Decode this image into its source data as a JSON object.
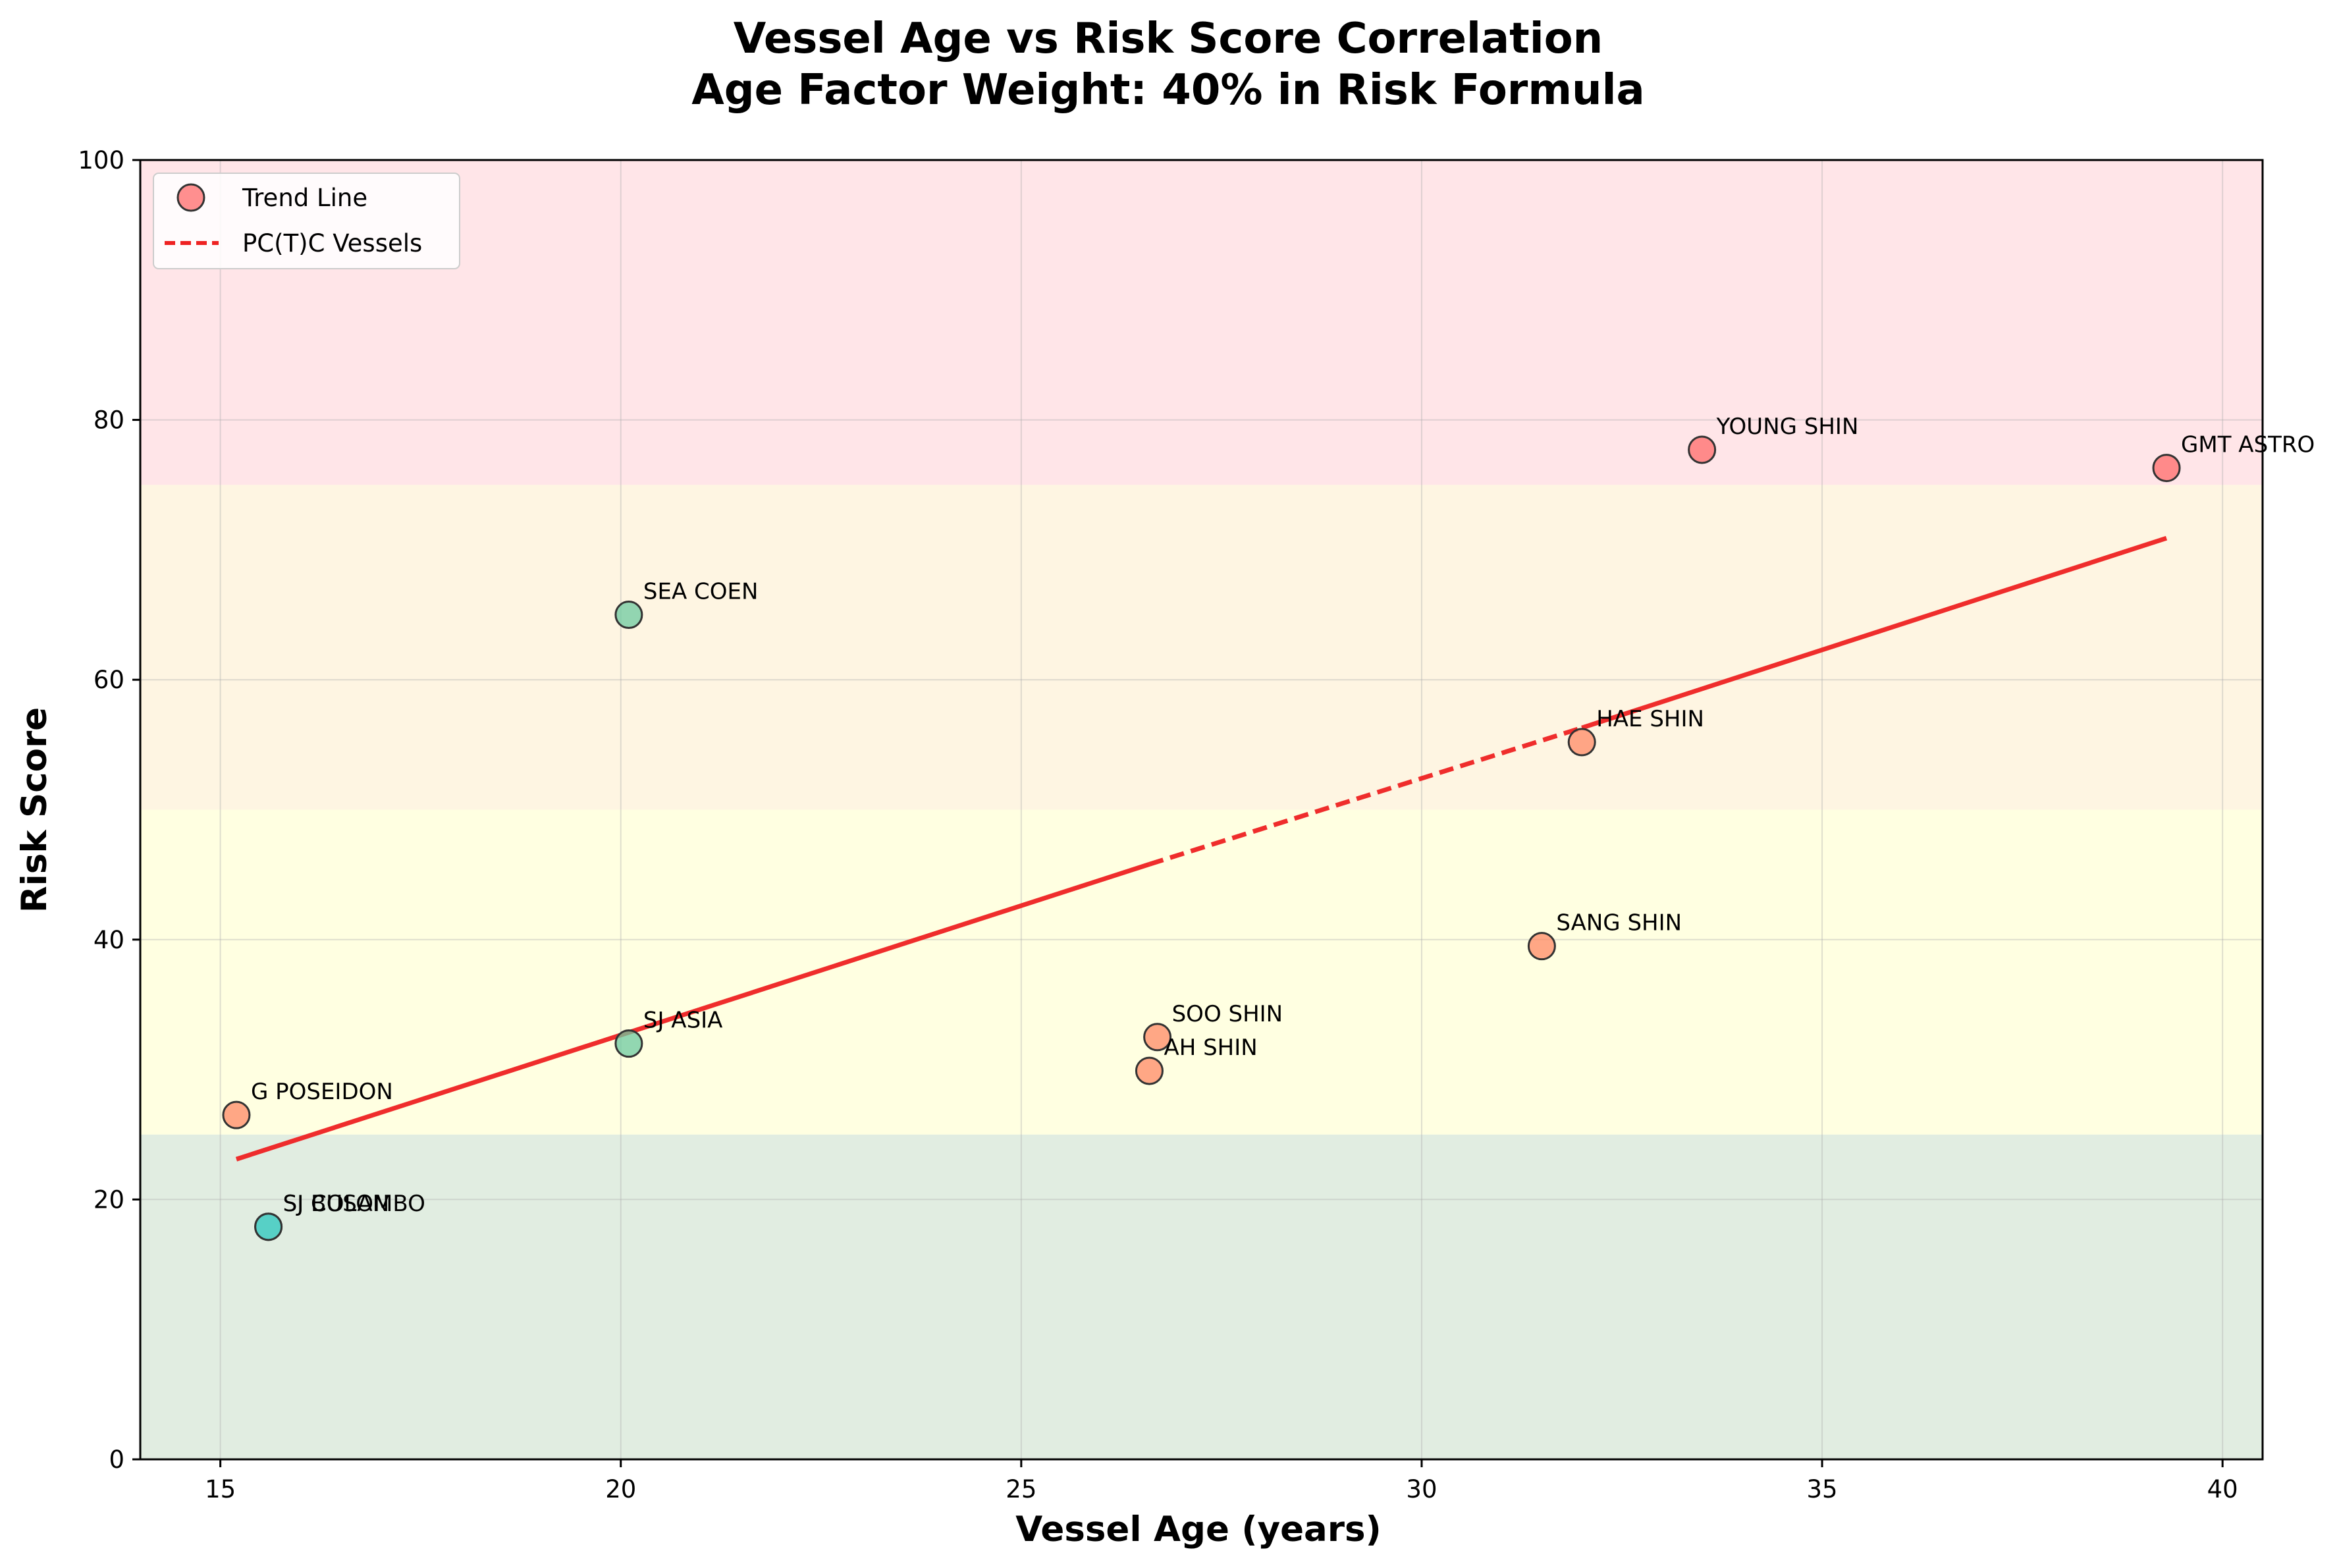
{
  "chart_data": {
    "type": "scatter",
    "title_lines": [
      "Vessel Age vs Risk Score Correlation",
      "Age Factor Weight: 40% in Risk Formula"
    ],
    "xlabel": "Vessel Age (years)",
    "ylabel": "Risk Score",
    "xlim": [
      14,
      40.5
    ],
    "ylim": [
      0,
      100
    ],
    "x_ticks": [
      15,
      20,
      25,
      30,
      35,
      40
    ],
    "y_ticks": [
      0,
      20,
      40,
      60,
      80,
      100
    ],
    "grid": true,
    "legend": {
      "placement": "top-left",
      "entries": [
        {
          "label": "Trend Line",
          "marker": "circle",
          "color": "#ff6b6b"
        },
        {
          "label": "PC(T)C Vessels",
          "marker": "dashed-line",
          "color": "#ee2222"
        }
      ]
    },
    "bands": [
      {
        "y0": 0,
        "y1": 25,
        "color": "#c8dfc8"
      },
      {
        "y0": 25,
        "y1": 50,
        "color": "#ffffc8"
      },
      {
        "y0": 50,
        "y1": 75,
        "color": "#feeccb"
      },
      {
        "y0": 75,
        "y1": 100,
        "color": "#ffd0d6"
      }
    ],
    "points": [
      {
        "name": "YOUNG SHIN",
        "x": 33.5,
        "y": 77.7,
        "color": "#ff6b6b"
      },
      {
        "name": "GMT ASTRO",
        "x": 39.3,
        "y": 76.3,
        "color": "#ff6b6b"
      },
      {
        "name": "SEA COEN",
        "x": 20.1,
        "y": 65.0,
        "color": "#6ec9a0"
      },
      {
        "name": "HAE SHIN",
        "x": 32.0,
        "y": 55.2,
        "color": "#ff8a65"
      },
      {
        "name": "SANG SHIN",
        "x": 31.5,
        "y": 39.5,
        "color": "#ff8a65"
      },
      {
        "name": "SOO SHIN",
        "x": 26.7,
        "y": 32.5,
        "color": "#ff8a65"
      },
      {
        "name": "AH SHIN",
        "x": 26.6,
        "y": 29.9,
        "color": "#ff8a65"
      },
      {
        "name": "SJ ASIA",
        "x": 20.1,
        "y": 32.0,
        "color": "#6ec9a0"
      },
      {
        "name": "G POSEIDON",
        "x": 15.2,
        "y": 26.5,
        "color": "#ff8a65"
      },
      {
        "name": "SJ BUSAN",
        "x": 15.6,
        "y": 17.9,
        "color": "#4ecdc4"
      },
      {
        "name": "SJ COLOMBO",
        "x": 15.6,
        "y": 17.9,
        "color": "#4ecdc4"
      }
    ],
    "trend_line": {
      "color": "#ee2222",
      "solid": {
        "x0": 15.2,
        "y0": 23.1,
        "x1": 26.6,
        "y1": 45.8
      },
      "dashed": {
        "x0": 26.6,
        "y0": 45.8,
        "x1": 32.0,
        "y1": 56.3
      },
      "solid_end": {
        "x0": 32.0,
        "y0": 56.3,
        "x1": 39.3,
        "y1": 70.9
      }
    }
  }
}
